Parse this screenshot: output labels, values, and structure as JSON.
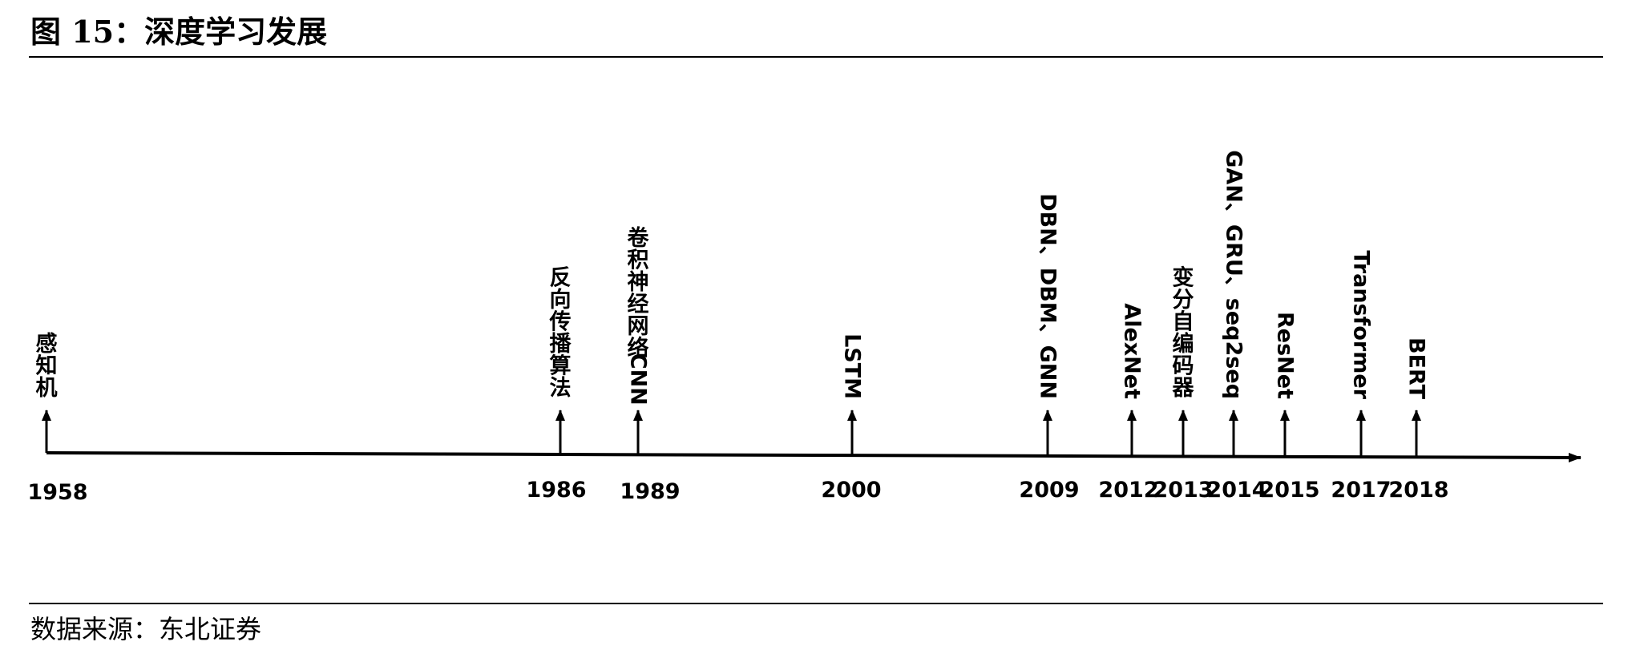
{
  "title": "图 15：深度学习发展",
  "source": "数据来源：东北证券",
  "timeline": {
    "events": [
      {
        "year": "1958",
        "label": "感知机",
        "orientation": "stacked"
      },
      {
        "year": "1986",
        "label": "反向传播算法",
        "orientation": "stacked"
      },
      {
        "year": "1989",
        "label": "卷积神经网络CNN",
        "orientation": "stacked"
      },
      {
        "year": "2000",
        "label": "LSTM",
        "orientation": "rotated"
      },
      {
        "year": "2009",
        "label": "DBN、DBM、GNN",
        "orientation": "rotated"
      },
      {
        "year": "2012",
        "label": "AlexNet",
        "orientation": "rotated"
      },
      {
        "year": "2013",
        "label": "变分自编码器",
        "orientation": "stacked"
      },
      {
        "year": "2014",
        "label": "GAN、GRU、seq2seq",
        "orientation": "rotated"
      },
      {
        "year": "2015",
        "label": "ResNet",
        "orientation": "rotated"
      },
      {
        "year": "2017",
        "label": "Transformer",
        "orientation": "rotated"
      },
      {
        "year": "2018",
        "label": "BERT",
        "orientation": "rotated"
      }
    ]
  }
}
